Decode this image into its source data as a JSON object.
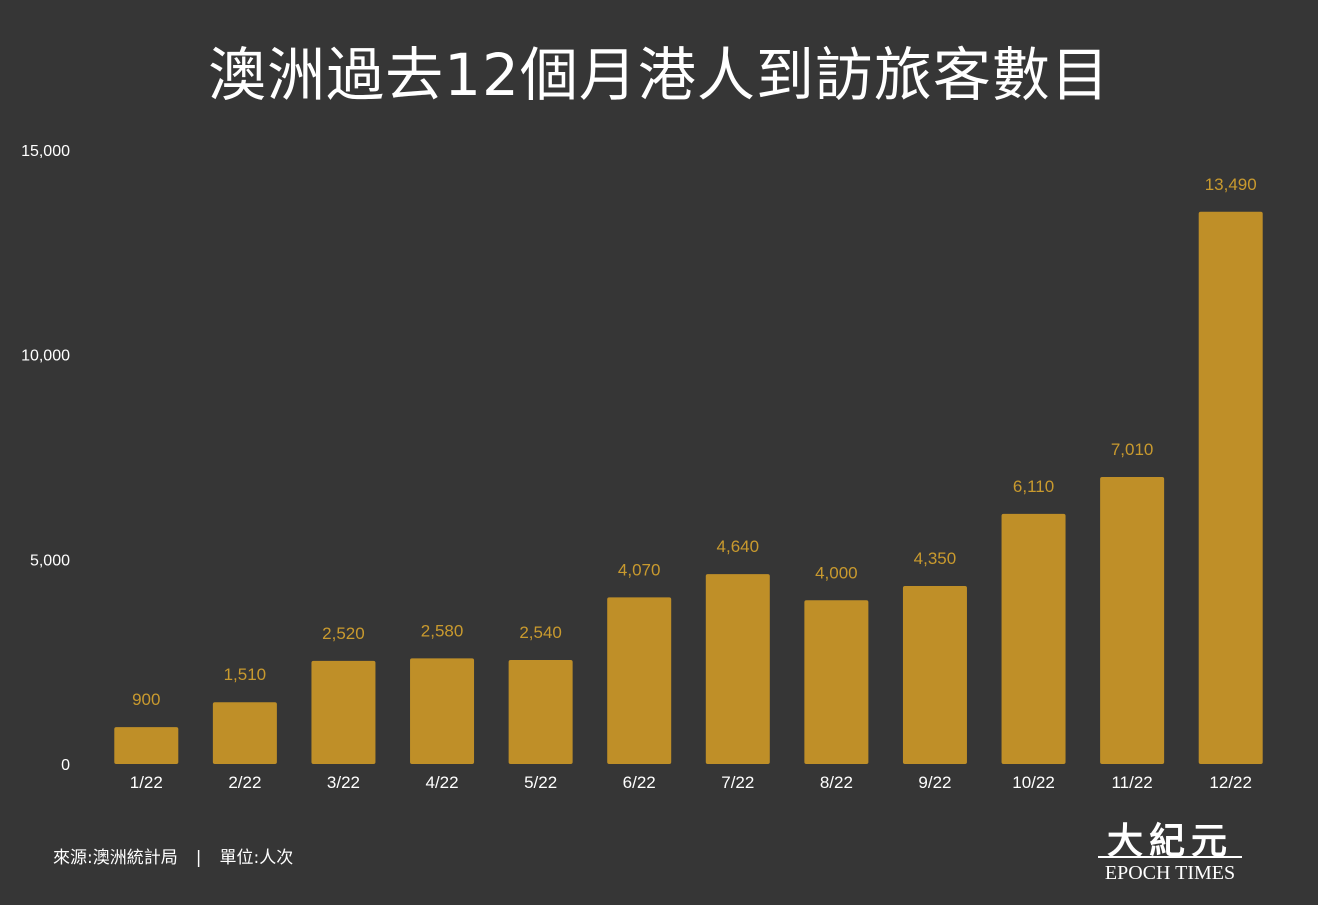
{
  "title": "澳洲過去12個月港人到訪旅客數目",
  "footer": {
    "source": "來源:澳洲統計局",
    "separator": "|",
    "unit": "單位:人次"
  },
  "logo": {
    "cn": "大紀元",
    "en": "EPOCH TIMES"
  },
  "colors": {
    "background": "#363636",
    "bar": "#bf8f28",
    "bar_label": "#c99a2e",
    "axis_text": "#ffffff"
  },
  "chart_data": {
    "type": "bar",
    "title": "澳洲過去12個月港人到訪旅客數目",
    "xlabel": "",
    "ylabel": "",
    "categories": [
      "1/22",
      "2/22",
      "3/22",
      "4/22",
      "5/22",
      "6/22",
      "7/22",
      "8/22",
      "9/22",
      "10/22",
      "11/22",
      "12/22"
    ],
    "values": [
      900,
      1510,
      2520,
      2580,
      2540,
      4070,
      4640,
      4000,
      4350,
      6110,
      7010,
      13490
    ],
    "value_labels": [
      "900",
      "1,510",
      "2,520",
      "2,580",
      "2,540",
      "4,070",
      "4,640",
      "4,000",
      "4,350",
      "6,110",
      "7,010",
      "13,490"
    ],
    "ylim": [
      0,
      15000
    ],
    "yticks": [
      0,
      5000,
      10000,
      15000
    ],
    "ytick_labels": [
      "0",
      "5,000",
      "10,000",
      "15,000"
    ],
    "grid": false,
    "legend": "none"
  }
}
